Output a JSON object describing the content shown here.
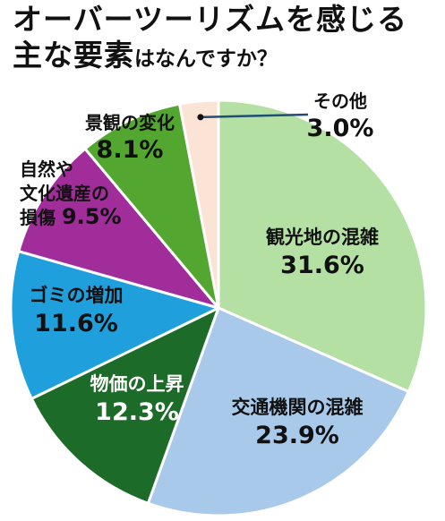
{
  "title": {
    "line1": "オーバーツーリズムを感じる",
    "line2_main": "主な要素",
    "line2_small": "はなんですか？"
  },
  "chart_data": {
    "type": "pie",
    "start": "12 o'clock, clockwise",
    "slices": [
      {
        "label": "観光地の混雑",
        "value": 31.6,
        "value_text": "31.6%",
        "color": "#b4e0a3",
        "text_color": "#111111"
      },
      {
        "label": "交通機関の混雑",
        "value": 23.9,
        "value_text": "23.9%",
        "color": "#a8c9ea",
        "text_color": "#111111"
      },
      {
        "label": "物価の上昇",
        "value": 12.3,
        "value_text": "12.3%",
        "color": "#1d6b28",
        "text_color": "#ffffff"
      },
      {
        "label": "ゴミの増加",
        "value": 11.6,
        "value_text": "11.6%",
        "color": "#1f9fdc",
        "text_color": "#111111"
      },
      {
        "label": "自然や文化遺産の損傷",
        "label_lines": [
          "自然や",
          "文化遺産の",
          "損傷"
        ],
        "value": 9.5,
        "value_text": "9.5%",
        "color": "#a12d9a",
        "text_color": "#111111"
      },
      {
        "label": "景観の変化",
        "value": 8.1,
        "value_text": "8.1%",
        "color": "#53a630",
        "text_color": "#111111"
      },
      {
        "label": "その他",
        "value": 3.0,
        "value_text": "3.0%",
        "color": "#fbe3d6",
        "text_color": "#111111"
      }
    ]
  }
}
